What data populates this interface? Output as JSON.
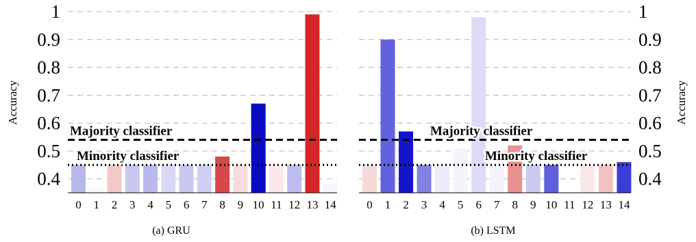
{
  "chart_data": [
    {
      "type": "bar",
      "caption": "(a) GRU",
      "ylabel": "Accuracy",
      "ylim": [
        0.35,
        1.0
      ],
      "yticks": [
        "0.4",
        "0.5",
        "0.6",
        "0.7",
        "0.8",
        "0.9",
        "1"
      ],
      "categories": [
        "0",
        "1",
        "2",
        "3",
        "4",
        "5",
        "6",
        "7",
        "8",
        "9",
        "10",
        "11",
        "12",
        "13",
        "14"
      ],
      "values": [
        0.45,
        0.37,
        0.45,
        0.45,
        0.45,
        0.45,
        0.45,
        0.45,
        0.48,
        0.45,
        0.67,
        0.45,
        0.45,
        0.99,
        0.38
      ],
      "colors": [
        "#b7b7eb",
        "#f8f8ff",
        "#f2c8c8",
        "#c8c8f0",
        "#b9b9ec",
        "#d8d8f6",
        "#c8c8f1",
        "#d0d0f4",
        "#d84848",
        "#f8dcdc",
        "#0a0ac0",
        "#fbe8e8",
        "#bcbcee",
        "#d42828",
        "#f4f4fd"
      ],
      "reference_lines": [
        {
          "label": "Majority classifier",
          "value": 0.54,
          "style": "dashed"
        },
        {
          "label": "Minority classifier",
          "value": 0.45,
          "style": "dotted"
        }
      ],
      "grid": "horizontal dashed",
      "ylabel_side": "left"
    },
    {
      "type": "bar",
      "caption": "(b) LSTM",
      "ylabel": "Accuracy",
      "ylim": [
        0.35,
        1.0
      ],
      "yticks": [
        "0.4",
        "0.5",
        "0.6",
        "0.7",
        "0.8",
        "0.9",
        "1"
      ],
      "categories": [
        "0",
        "1",
        "2",
        "3",
        "4",
        "5",
        "6",
        "7",
        "8",
        "9",
        "10",
        "11",
        "12",
        "13",
        "14"
      ],
      "values": [
        0.45,
        0.9,
        0.57,
        0.45,
        0.45,
        0.51,
        0.98,
        0.45,
        0.52,
        0.45,
        0.45,
        0.35,
        0.45,
        0.45,
        0.46
      ],
      "colors": [
        "#f6dada",
        "#6262e0",
        "#1414cc",
        "#8282e2",
        "#ececfa",
        "#f4f4fd",
        "#dcdcf7",
        "#f4f4fd",
        "#e89090",
        "#cacaf1",
        "#6060dc",
        "#ffffff",
        "#fbe8e8",
        "#f2c2c2",
        "#3c3cd8"
      ],
      "reference_lines": [
        {
          "label": "Majority classifier",
          "value": 0.54,
          "style": "dashed"
        },
        {
          "label": "Minority classifier",
          "value": 0.45,
          "style": "dotted"
        }
      ],
      "grid": "horizontal dashed",
      "ylabel_side": "right"
    }
  ]
}
